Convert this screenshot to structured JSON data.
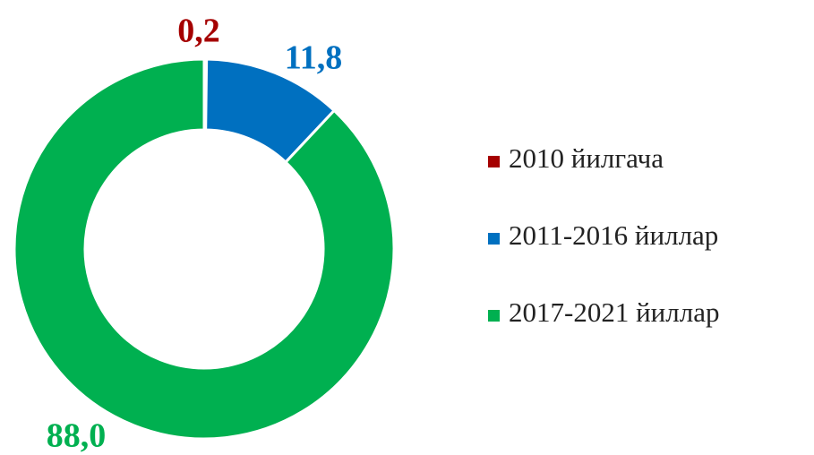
{
  "chart_data": {
    "type": "donut",
    "categories": [
      "2010 йилгача",
      "2011-2016 йиллар",
      "2017-2021 йиллар"
    ],
    "values": [
      0.2,
      11.8,
      88.0
    ],
    "value_labels": [
      "0,2",
      "11,8",
      "88,0"
    ],
    "colors": [
      "#a50000",
      "#0070c0",
      "#00b050"
    ],
    "legend": "right"
  }
}
